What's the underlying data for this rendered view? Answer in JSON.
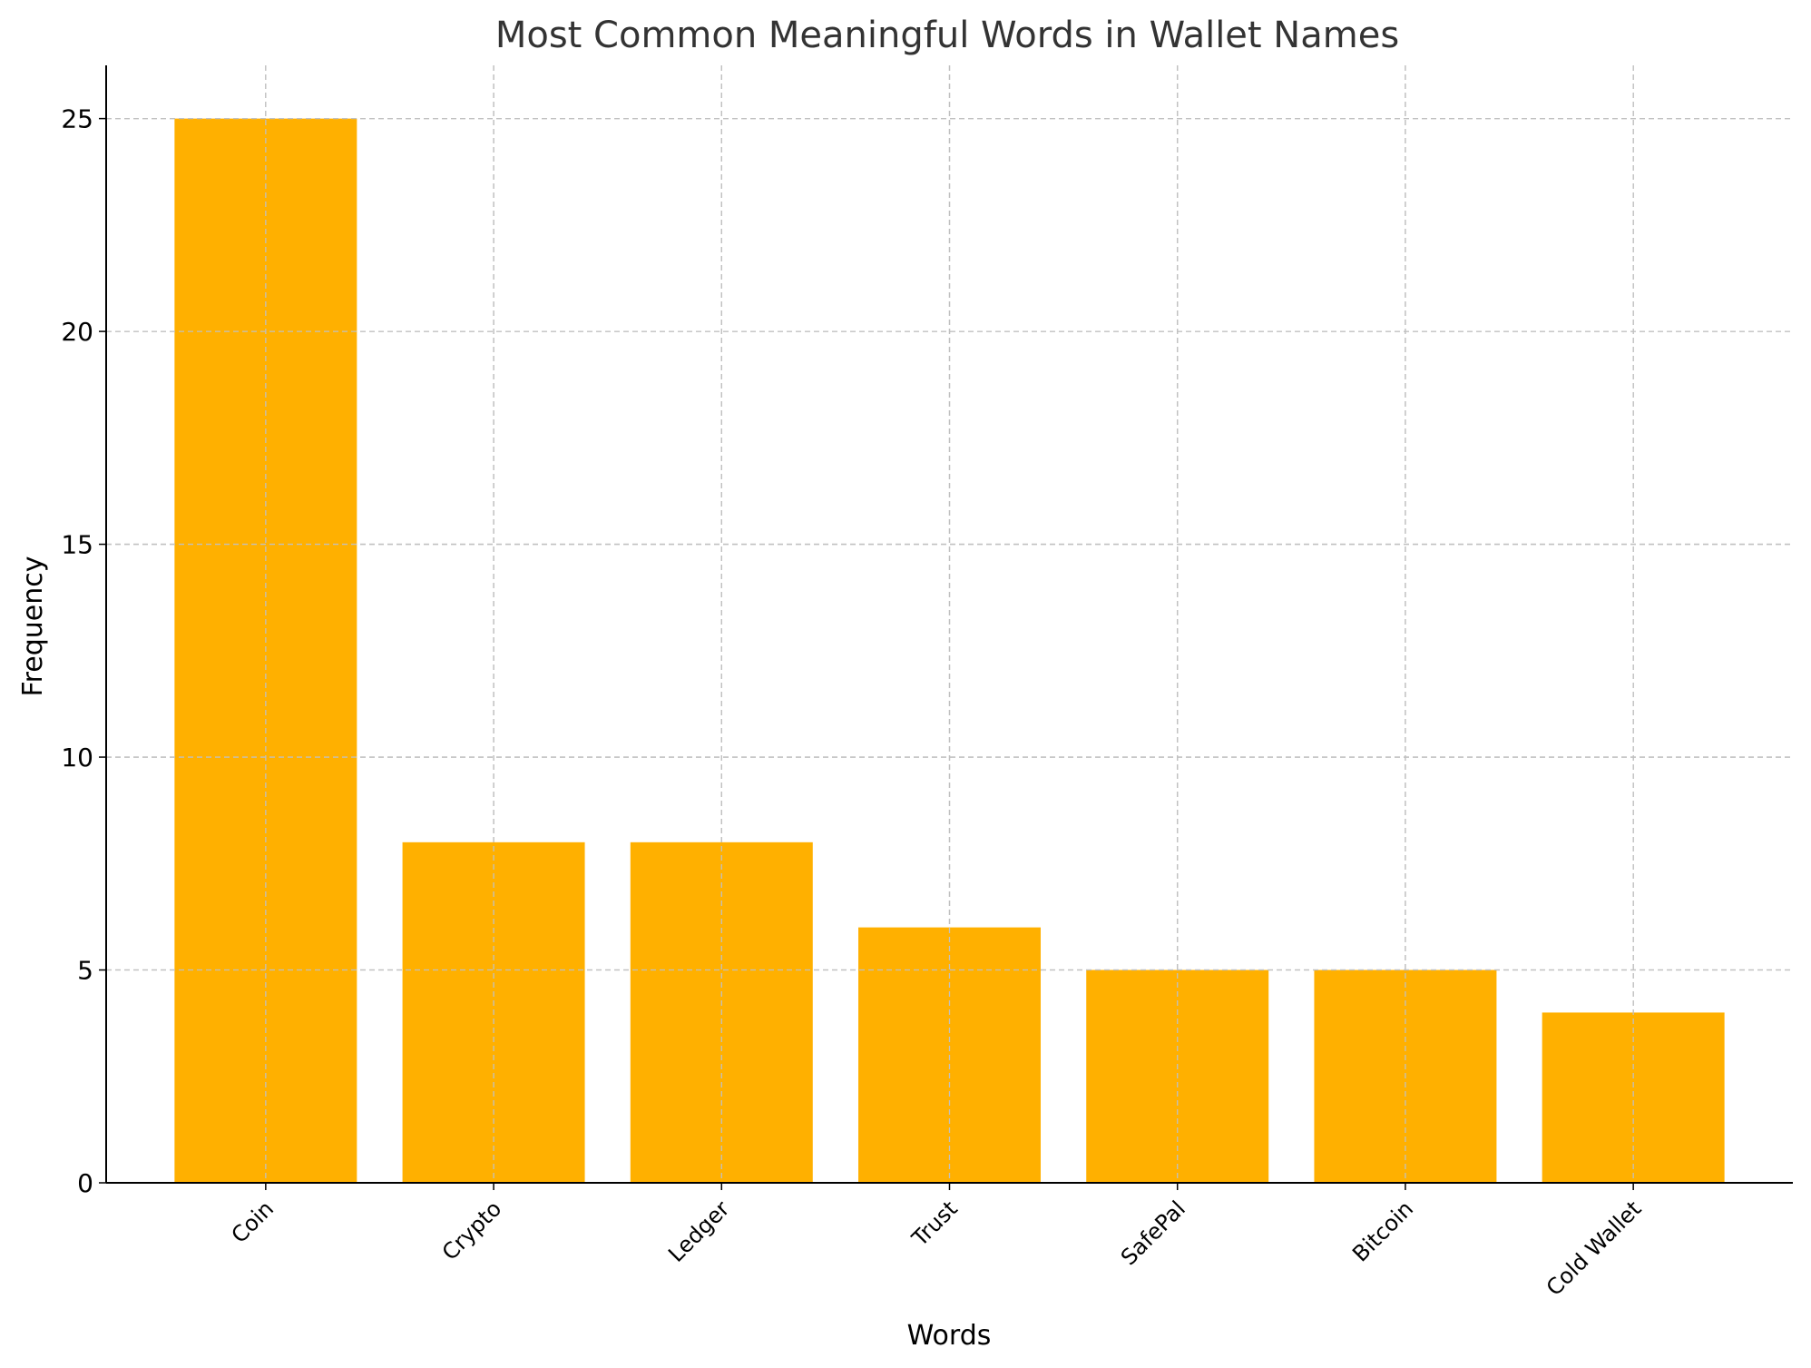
{
  "chart_data": {
    "type": "bar",
    "title": "Most Common Meaningful Words in Wallet Names",
    "xlabel": "Words",
    "ylabel": "Frequency",
    "categories": [
      "Coin",
      "Crypto",
      "Ledger",
      "Trust",
      "SafePal",
      "Bitcoin",
      "Cold Wallet"
    ],
    "values": [
      25,
      8,
      8,
      6,
      5,
      5,
      4
    ],
    "ylim": [
      0,
      26.25
    ],
    "yticks": [
      0,
      5,
      10,
      15,
      20,
      25
    ],
    "grid": true,
    "bar_color": "#FFB000",
    "title_color": "#333333"
  }
}
